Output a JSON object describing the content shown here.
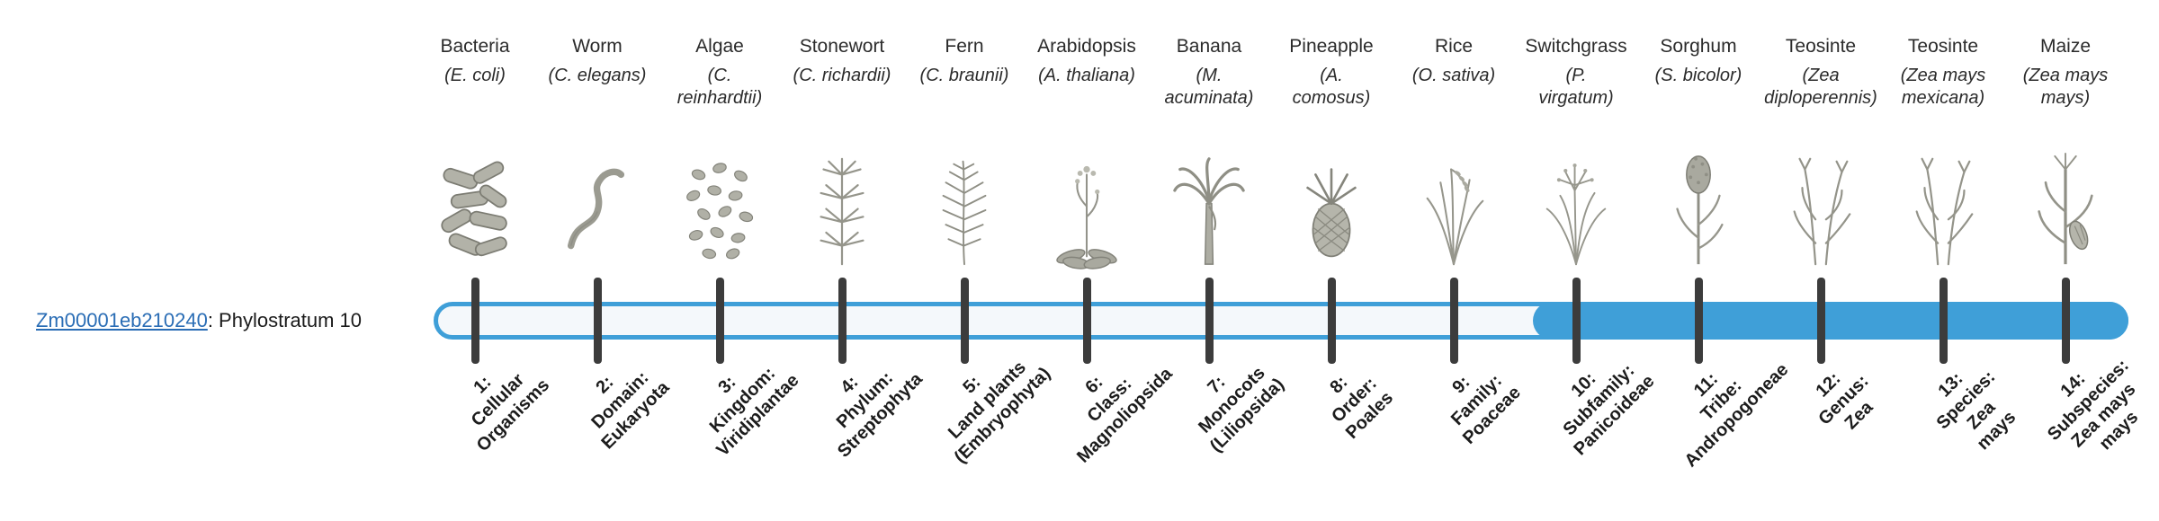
{
  "gene": {
    "id": "Zm00001eb210240",
    "suffix": ": Phylostratum 10",
    "phylostratum": 10
  },
  "colors": {
    "accent": "#3f9fd8",
    "link": "#2a6db5",
    "tick": "#3c3c3c",
    "track_background": "#f4f8fb"
  },
  "timeline": {
    "strata": [
      {
        "common": "Bacteria",
        "sci": "(E. coli)",
        "icon": "bacteria-icon",
        "label": "1:\nCellular\nOrganisms"
      },
      {
        "common": "Worm",
        "sci": "(C. elegans)",
        "icon": "worm-icon",
        "label": "2:\nDomain:\nEukaryota"
      },
      {
        "common": "Algae",
        "sci": "(C.\nreinhardtii)",
        "icon": "algae-icon",
        "label": "3:\nKingdom:\nViridiplantae"
      },
      {
        "common": "Stonewort",
        "sci": "(C. richardii)",
        "icon": "stonewort-icon",
        "label": "4:\nPhylum:\nStreptophyta"
      },
      {
        "common": "Fern",
        "sci": "(C. braunii)",
        "icon": "fern-icon",
        "label": "5:\nLand plants\n(Embryophyta)"
      },
      {
        "common": "Arabidopsis",
        "sci": "(A. thaliana)",
        "icon": "arabidopsis-icon",
        "label": "6:\nClass:\nMagnoliopsida"
      },
      {
        "common": "Banana",
        "sci": "(M.\nacuminata)",
        "icon": "banana-icon",
        "label": "7:\nMonocots\n(Liliopsida)"
      },
      {
        "common": "Pineapple",
        "sci": "(A.\ncomosus)",
        "icon": "pineapple-icon",
        "label": "8:\nOrder:\nPoales"
      },
      {
        "common": "Rice",
        "sci": "(O. sativa)",
        "icon": "rice-icon",
        "label": "9:\nFamily:\nPoaceae"
      },
      {
        "common": "Switchgrass",
        "sci": "(P.\nvirgatum)",
        "icon": "switchgrass-icon",
        "label": "10:\nSubfamily:\nPanicoideae"
      },
      {
        "common": "Sorghum",
        "sci": "(S. bicolor)",
        "icon": "sorghum-icon",
        "label": "11:\nTribe:\nAndropogoneae"
      },
      {
        "common": "Teosinte",
        "sci": "(Zea\ndiploperennis)",
        "icon": "teosinte-icon",
        "label": "12:\nGenus:\nZea"
      },
      {
        "common": "Teosinte",
        "sci": "(Zea mays\nmexicana)",
        "icon": "teosinte-icon",
        "label": "13:\nSpecies:\nZea\nmays"
      },
      {
        "common": "Maize",
        "sci": "(Zea mays\nmays)",
        "icon": "maize-icon",
        "label": "14:\nSubspecies:\nZea mays\nmays"
      }
    ]
  }
}
